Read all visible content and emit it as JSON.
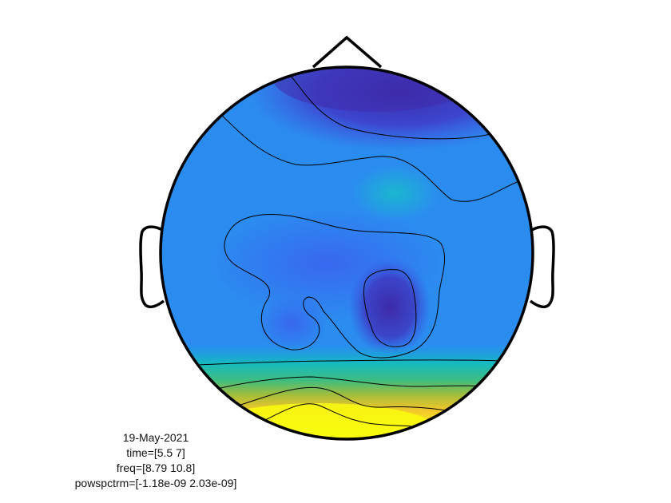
{
  "figure": {
    "type": "topoplot",
    "colormap": "parula",
    "contour_lines": true,
    "head_outline": [
      "nose",
      "left-ear",
      "right-ear"
    ],
    "colors": {
      "background": "#ffffff",
      "outline": "#000000",
      "low": "#3e26a8",
      "mid": "#2b8cf0",
      "high": "#f9fb0e"
    }
  },
  "info": {
    "date": "19-May-2021",
    "time": "time=[5.5 7]",
    "freq": "freq=[8.79 10.8]",
    "powspctrm": "powspctrm=[-1.18e-09 2.03e-09]"
  }
}
